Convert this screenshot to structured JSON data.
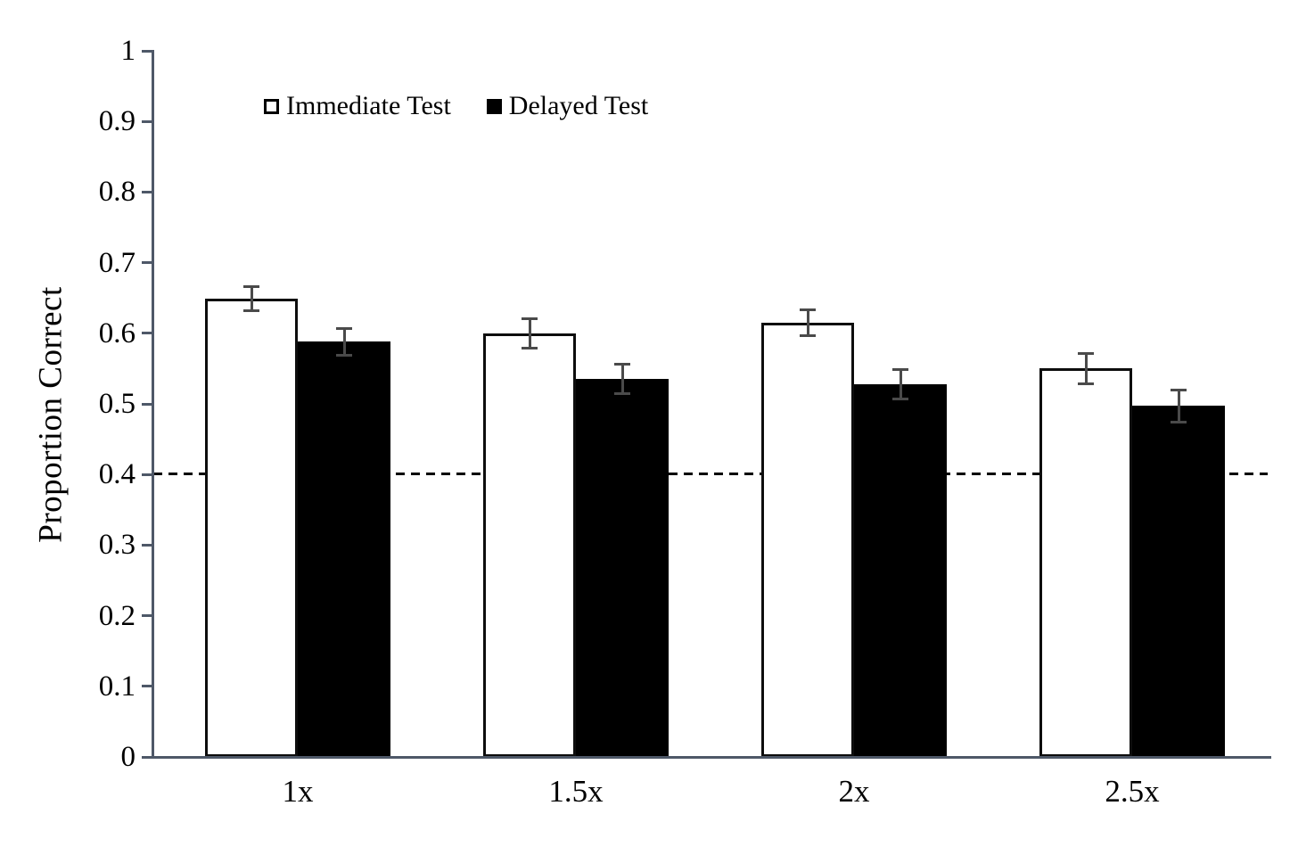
{
  "chart_data": {
    "type": "bar",
    "title": "",
    "xlabel": "",
    "ylabel": "Proportion Correct",
    "categories": [
      "1x",
      "1.5x",
      "2x",
      "2.5x"
    ],
    "series": [
      {
        "name": "Immediate Test",
        "style": "open",
        "fill": "#ffffff",
        "values": [
          0.649,
          0.6,
          0.615,
          0.55
        ],
        "errors": [
          0.017,
          0.021,
          0.018,
          0.021
        ]
      },
      {
        "name": "Delayed Test",
        "style": "solid",
        "fill": "#000000",
        "values": [
          0.588,
          0.535,
          0.528,
          0.497
        ],
        "errors": [
          0.019,
          0.021,
          0.021,
          0.023
        ]
      }
    ],
    "ylim": [
      0,
      1
    ],
    "ytick_step": 0.1,
    "yticks": [
      "0",
      "0.1",
      "0.2",
      "0.3",
      "0.4",
      "0.5",
      "0.6",
      "0.7",
      "0.8",
      "0.9",
      "1"
    ],
    "reference_line": {
      "y": 0.4,
      "style": "dashed",
      "color": "#000000"
    },
    "legend_position": "top-left-inside",
    "grid": false,
    "colors": {
      "bar_outline": "#0d0d0d",
      "error_bar": "#4a4a4a",
      "axis": "#4e5868",
      "background": "#ffffff"
    }
  }
}
